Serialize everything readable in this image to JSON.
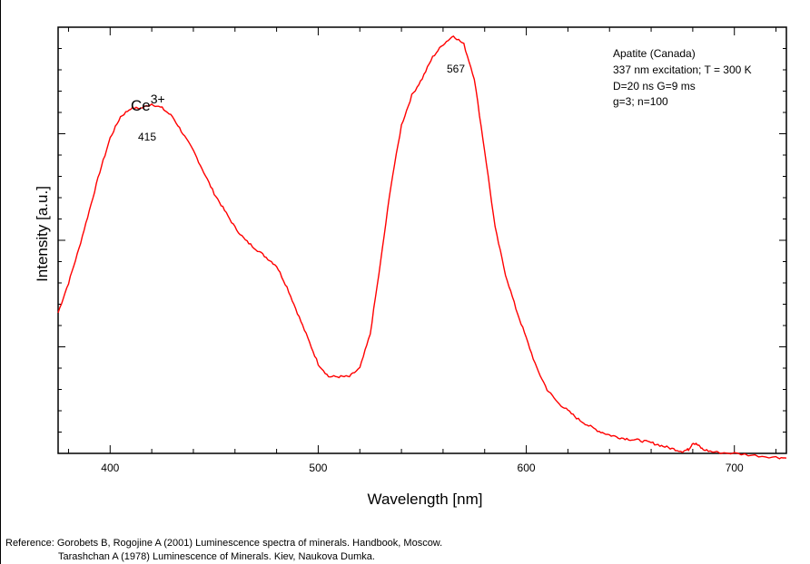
{
  "chart_data": {
    "type": "line",
    "xlabel": "Wavelength [nm]",
    "ylabel": "Intensity [a.u.]",
    "xlim": [
      375,
      725
    ],
    "ylim": [
      0,
      1.0
    ],
    "x_ticks": [
      400,
      500,
      600,
      700
    ],
    "y_ticks_labeled": false,
    "grid": false,
    "series": [
      {
        "color": "#ff0000",
        "x": [
          375,
          380,
          385,
          390,
          395,
          400,
          405,
          410,
          415,
          420,
          425,
          430,
          435,
          440,
          445,
          450,
          455,
          460,
          465,
          470,
          475,
          480,
          485,
          490,
          495,
          500,
          505,
          510,
          515,
          520,
          525,
          530,
          535,
          540,
          545,
          550,
          555,
          560,
          565,
          570,
          575,
          580,
          585,
          590,
          595,
          600,
          605,
          610,
          615,
          620,
          625,
          630,
          635,
          640,
          645,
          650,
          655,
          660,
          665,
          670,
          675,
          678,
          680,
          682,
          685,
          690,
          700,
          710,
          720,
          725
        ],
        "y": [
          0.33,
          0.4,
          0.48,
          0.57,
          0.66,
          0.74,
          0.79,
          0.81,
          0.81,
          0.82,
          0.81,
          0.79,
          0.75,
          0.71,
          0.66,
          0.61,
          0.57,
          0.53,
          0.5,
          0.48,
          0.46,
          0.44,
          0.39,
          0.33,
          0.27,
          0.21,
          0.18,
          0.18,
          0.18,
          0.2,
          0.28,
          0.45,
          0.63,
          0.77,
          0.84,
          0.88,
          0.93,
          0.96,
          0.98,
          0.96,
          0.88,
          0.71,
          0.53,
          0.42,
          0.34,
          0.27,
          0.2,
          0.15,
          0.12,
          0.1,
          0.08,
          0.065,
          0.052,
          0.043,
          0.037,
          0.033,
          0.03,
          0.025,
          0.018,
          0.011,
          0.005,
          0.009,
          0.025,
          0.021,
          0.009,
          0.003,
          0.0,
          -0.005,
          -0.009,
          -0.011
        ]
      }
    ],
    "annotations": {
      "ion_base": "Ce",
      "ion_sup": "3+",
      "peak_1_label": "415",
      "peak_2_label": "567",
      "info": [
        "Apatite (Canada)",
        "337 nm excitation; T = 300 K",
        "D=20 ns G=9 ms",
        "g=3; n=100"
      ]
    }
  },
  "reference": {
    "line1": "Reference: Gorobets B, Rogojine A (2001) Luminescence spectra of minerals. Handbook, Moscow.",
    "line2": "Tarashchan A (1978) Luminescence of Minerals. Kiev, Naukova Dumka."
  }
}
